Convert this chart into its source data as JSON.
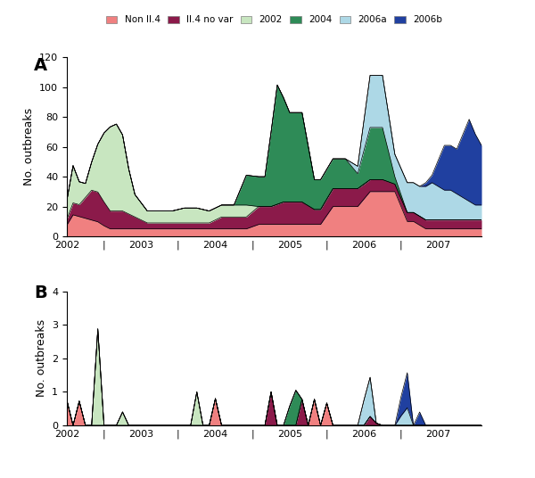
{
  "colors": {
    "non_ii4": "#F08080",
    "ii4_no_var": "#8B1A4A",
    "y2002": "#C8E6C0",
    "y2004": "#2E8B57",
    "y2006a": "#ADD8E6",
    "y2006b": "#2040A0"
  },
  "legend_labels": [
    "Non II.4",
    "II.4 no var",
    "2002",
    "2004",
    "2006a",
    "2006b"
  ],
  "panel_A_label": "A",
  "panel_B_label": "B",
  "ylabel": "No. outbreaks",
  "A_ylim": [
    0,
    120
  ],
  "B_ylim": [
    0,
    4
  ],
  "A_yticks": [
    0,
    20,
    40,
    60,
    80,
    100,
    120
  ],
  "B_yticks": [
    0,
    1,
    2,
    3,
    4
  ]
}
